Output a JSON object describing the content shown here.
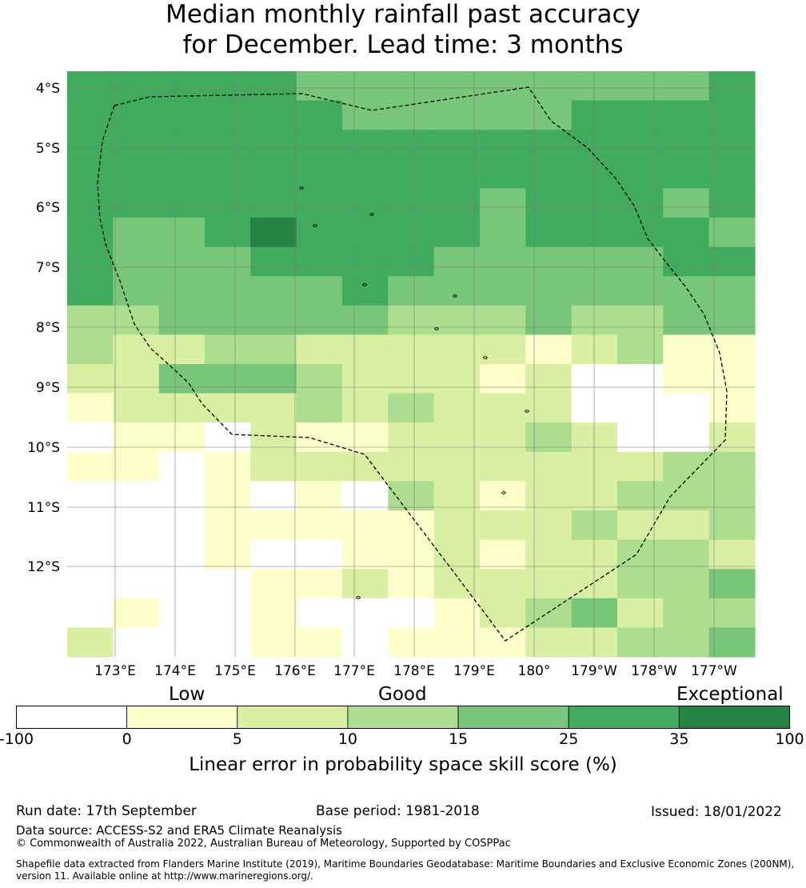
{
  "title": {
    "line1": "Median monthly rainfall past accuracy",
    "line2": "for December. Lead time: 3 months"
  },
  "map": {
    "lat_labels": [
      "4°S",
      "5°S",
      "6°S",
      "7°S",
      "8°S",
      "9°S",
      "10°S",
      "11°S",
      "12°S"
    ],
    "lon_labels": [
      "173°E",
      "174°E",
      "175°E",
      "176°E",
      "177°E",
      "178°E",
      "179°E",
      "180°",
      "179°W",
      "178°W",
      "177°W"
    ],
    "boundary": "dashed EEZ outline"
  },
  "chart_data": {
    "type": "heatmap",
    "title": "Median monthly rainfall past accuracy for December. Lead time: 3 months",
    "lon_range": [
      172.2,
      183.7
    ],
    "lat_range": [
      -3.7,
      -13.5
    ],
    "grid_note": "values are colour class index 0-6 on an approx 0.83-degree grid; rows from north to south, columns from west to east",
    "classes": [
      "-100 to 0",
      "0 to 5",
      "5 to 10",
      "10 to 15",
      "15 to 25",
      "25 to 35",
      "35 to 100"
    ],
    "rows": [
      [
        5,
        5,
        5,
        5,
        5,
        4,
        4,
        4,
        4,
        4,
        4,
        4,
        4,
        4,
        5
      ],
      [
        5,
        5,
        5,
        5,
        5,
        5,
        4,
        4,
        4,
        4,
        4,
        5,
        5,
        5,
        5
      ],
      [
        5,
        5,
        5,
        5,
        5,
        5,
        5,
        5,
        5,
        5,
        5,
        5,
        5,
        5,
        5
      ],
      [
        5,
        5,
        5,
        5,
        5,
        5,
        5,
        5,
        5,
        5,
        5,
        5,
        5,
        5,
        5
      ],
      [
        5,
        5,
        5,
        5,
        5,
        5,
        5,
        5,
        5,
        4,
        5,
        5,
        5,
        4,
        5
      ],
      [
        5,
        4,
        4,
        5,
        6,
        5,
        5,
        5,
        5,
        4,
        5,
        5,
        5,
        5,
        4
      ],
      [
        5,
        4,
        4,
        4,
        5,
        5,
        5,
        5,
        4,
        4,
        4,
        4,
        4,
        5,
        5
      ],
      [
        5,
        4,
        4,
        4,
        4,
        4,
        5,
        4,
        4,
        4,
        4,
        4,
        4,
        4,
        4
      ],
      [
        3,
        3,
        4,
        4,
        4,
        4,
        4,
        3,
        3,
        3,
        4,
        3,
        3,
        4,
        4
      ],
      [
        3,
        2,
        2,
        3,
        3,
        2,
        2,
        2,
        2,
        2,
        1,
        2,
        3,
        1,
        1
      ],
      [
        2,
        2,
        4,
        4,
        4,
        3,
        2,
        2,
        2,
        1,
        2,
        0,
        0,
        1,
        1
      ],
      [
        1,
        2,
        2,
        2,
        2,
        3,
        2,
        3,
        2,
        2,
        2,
        0,
        0,
        0,
        1
      ],
      [
        0,
        1,
        1,
        0,
        2,
        1,
        1,
        2,
        2,
        2,
        3,
        2,
        0,
        0,
        2
      ],
      [
        1,
        1,
        0,
        1,
        2,
        2,
        2,
        2,
        2,
        2,
        2,
        2,
        2,
        3,
        3
      ],
      [
        0,
        0,
        0,
        1,
        0,
        1,
        0,
        3,
        2,
        1,
        2,
        2,
        3,
        3,
        3
      ],
      [
        0,
        0,
        0,
        1,
        1,
        1,
        1,
        1,
        2,
        2,
        2,
        3,
        2,
        2,
        3
      ],
      [
        0,
        0,
        0,
        1,
        0,
        0,
        1,
        1,
        2,
        1,
        2,
        2,
        3,
        3,
        2
      ],
      [
        0,
        0,
        0,
        0,
        1,
        1,
        2,
        1,
        2,
        2,
        2,
        2,
        3,
        3,
        4
      ],
      [
        0,
        1,
        0,
        0,
        1,
        0,
        0,
        0,
        1,
        2,
        3,
        4,
        2,
        3,
        3
      ],
      [
        2,
        0,
        0,
        0,
        1,
        1,
        0,
        1,
        1,
        1,
        2,
        2,
        3,
        3,
        4
      ]
    ]
  },
  "colorbar": {
    "category_low": "Low",
    "category_good": "Good",
    "category_exceptional": "Exceptional",
    "tick_labels": [
      "-100",
      "0",
      "5",
      "10",
      "15",
      "25",
      "35",
      "100"
    ],
    "colors": [
      "#ffffff",
      "#ffffcc",
      "#d9f0a3",
      "#addd8e",
      "#78c679",
      "#41ab5d",
      "#238443"
    ],
    "axis_title": "Linear error in probability space skill score (%)"
  },
  "footer": {
    "run_date": "Run date: 17th September",
    "base_period": "Base period: 1981-2018",
    "issued": "Issued: 18/01/2022",
    "data_source": "Data source: ACCESS-S2 and ERA5 Climate Reanalysis",
    "copyright": "© Commonwealth of Australia 2022, Australian Bureau of Meteorology, Supported by COSPPac",
    "shapefile": "Shapefile data extracted from Flanders Marine Institute (2019), Maritime Boundaries Geodatabase: Maritime Boundaries and Exclusive Economic Zones (200NM), version 11. Available online at http://www.marineregions.org/."
  }
}
